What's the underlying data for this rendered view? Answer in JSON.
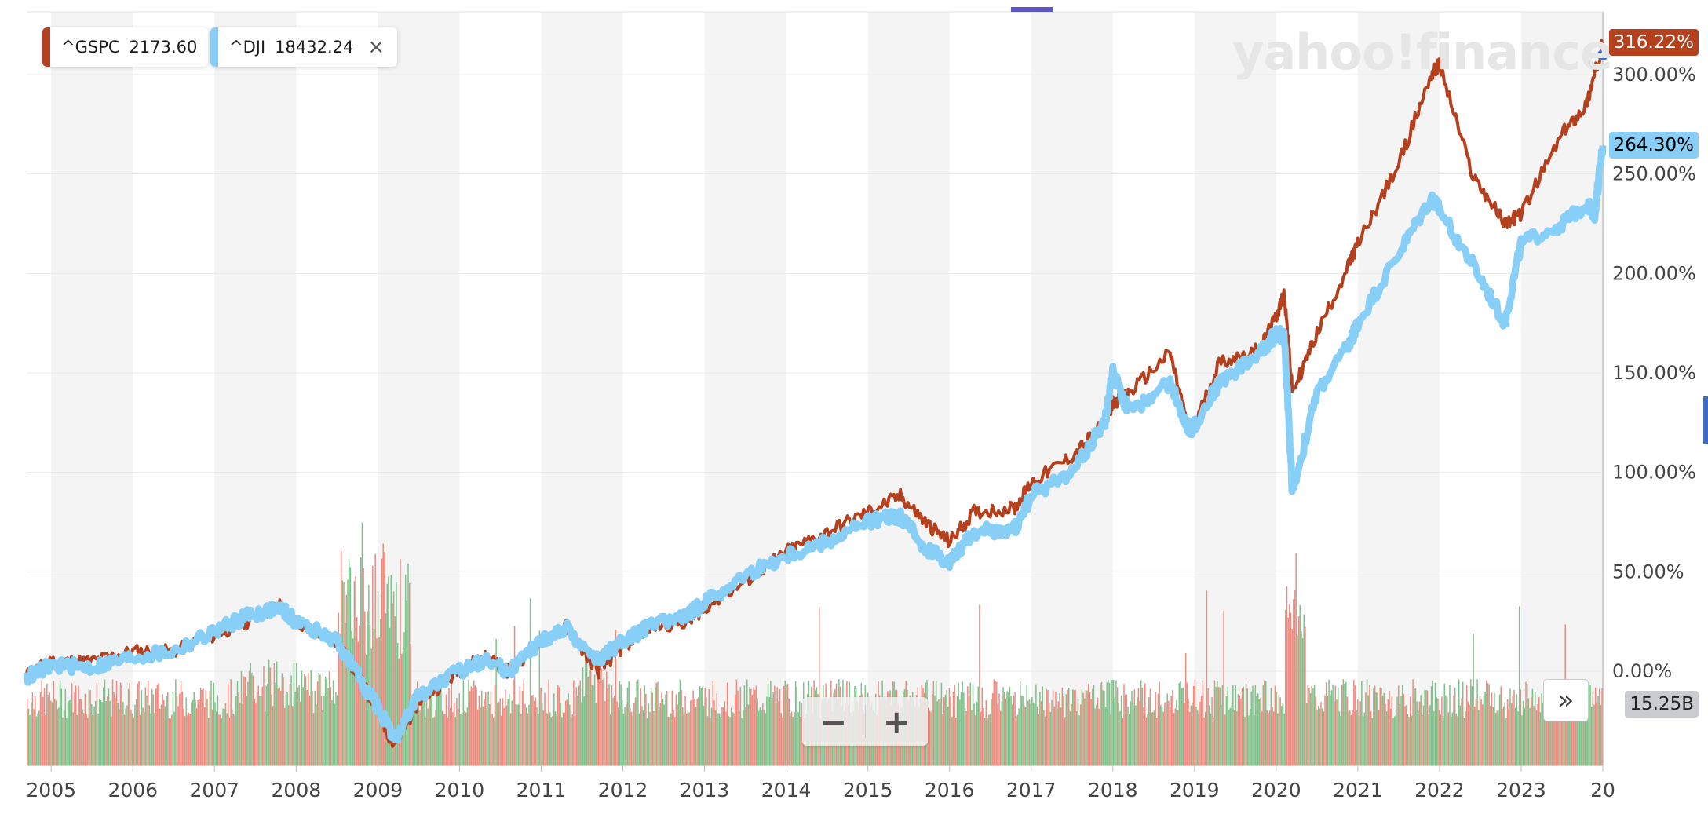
{
  "chart_data": {
    "type": "line",
    "x_start_year": 2004.7,
    "x_end_year": 2024.0,
    "year_ticks": [
      "2005",
      "2006",
      "2007",
      "2008",
      "2009",
      "2010",
      "2011",
      "2012",
      "2013",
      "2014",
      "2015",
      "2016",
      "2017",
      "2018",
      "2019",
      "2020",
      "2021",
      "2022",
      "2023",
      "20"
    ],
    "y_ticks": [
      "300.00%",
      "250.00%",
      "200.00%",
      "150.00%",
      "100.00%",
      "50.00%",
      "0.00%"
    ],
    "ylim": [
      -45,
      330
    ],
    "series": [
      {
        "name": "^GSPC",
        "color": "#b5401e",
        "points": [
          [
            2004.7,
            -2
          ],
          [
            2005.0,
            5
          ],
          [
            2005.5,
            5
          ],
          [
            2006.0,
            10
          ],
          [
            2006.5,
            10
          ],
          [
            2007.0,
            18
          ],
          [
            2007.4,
            25
          ],
          [
            2007.8,
            33
          ],
          [
            2008.0,
            25
          ],
          [
            2008.5,
            15
          ],
          [
            2008.8,
            -5
          ],
          [
            2009.0,
            -20
          ],
          [
            2009.2,
            -38
          ],
          [
            2009.5,
            -15
          ],
          [
            2010.0,
            0
          ],
          [
            2010.3,
            8
          ],
          [
            2010.6,
            0
          ],
          [
            2011.0,
            15
          ],
          [
            2011.3,
            22
          ],
          [
            2011.7,
            0
          ],
          [
            2012.0,
            12
          ],
          [
            2012.3,
            22
          ],
          [
            2012.8,
            25
          ],
          [
            2013.0,
            32
          ],
          [
            2013.5,
            45
          ],
          [
            2014.0,
            60
          ],
          [
            2014.5,
            70
          ],
          [
            2015.0,
            80
          ],
          [
            2015.4,
            88
          ],
          [
            2015.7,
            75
          ],
          [
            2016.0,
            65
          ],
          [
            2016.3,
            80
          ],
          [
            2016.8,
            82
          ],
          [
            2017.0,
            95
          ],
          [
            2017.5,
            108
          ],
          [
            2017.9,
            125
          ],
          [
            2018.0,
            135
          ],
          [
            2018.2,
            140
          ],
          [
            2018.7,
            160
          ],
          [
            2018.95,
            118
          ],
          [
            2019.3,
            155
          ],
          [
            2019.8,
            162
          ],
          [
            2020.0,
            178
          ],
          [
            2020.1,
            190
          ],
          [
            2020.2,
            140
          ],
          [
            2020.5,
            170
          ],
          [
            2020.9,
            205
          ],
          [
            2021.0,
            215
          ],
          [
            2021.5,
            255
          ],
          [
            2021.9,
            300
          ],
          [
            2022.0,
            305
          ],
          [
            2022.4,
            250
          ],
          [
            2022.8,
            225
          ],
          [
            2023.0,
            230
          ],
          [
            2023.5,
            270
          ],
          [
            2023.8,
            285
          ],
          [
            2023.9,
            300
          ],
          [
            2024.0,
            316.22
          ]
        ]
      },
      {
        "name": "^DJI",
        "color": "#88cff7",
        "points": [
          [
            2004.7,
            -3
          ],
          [
            2005.0,
            3
          ],
          [
            2005.5,
            2
          ],
          [
            2006.0,
            7
          ],
          [
            2006.5,
            10
          ],
          [
            2007.0,
            20
          ],
          [
            2007.4,
            28
          ],
          [
            2007.8,
            32
          ],
          [
            2008.0,
            25
          ],
          [
            2008.5,
            15
          ],
          [
            2008.8,
            -5
          ],
          [
            2009.0,
            -18
          ],
          [
            2009.2,
            -35
          ],
          [
            2009.5,
            -12
          ],
          [
            2010.0,
            0
          ],
          [
            2010.3,
            6
          ],
          [
            2010.6,
            0
          ],
          [
            2011.0,
            15
          ],
          [
            2011.3,
            22
          ],
          [
            2011.7,
            5
          ],
          [
            2012.0,
            15
          ],
          [
            2012.3,
            22
          ],
          [
            2012.8,
            28
          ],
          [
            2013.0,
            35
          ],
          [
            2013.5,
            48
          ],
          [
            2014.0,
            58
          ],
          [
            2014.5,
            65
          ],
          [
            2015.0,
            75
          ],
          [
            2015.4,
            78
          ],
          [
            2015.7,
            62
          ],
          [
            2016.0,
            55
          ],
          [
            2016.3,
            70
          ],
          [
            2016.8,
            72
          ],
          [
            2017.0,
            88
          ],
          [
            2017.5,
            100
          ],
          [
            2017.9,
            125
          ],
          [
            2018.0,
            150
          ],
          [
            2018.2,
            130
          ],
          [
            2018.7,
            145
          ],
          [
            2018.95,
            120
          ],
          [
            2019.3,
            145
          ],
          [
            2019.8,
            160
          ],
          [
            2020.0,
            170
          ],
          [
            2020.1,
            168
          ],
          [
            2020.2,
            90
          ],
          [
            2020.5,
            140
          ],
          [
            2020.9,
            165
          ],
          [
            2021.0,
            175
          ],
          [
            2021.5,
            210
          ],
          [
            2021.9,
            238
          ],
          [
            2022.0,
            232
          ],
          [
            2022.4,
            205
          ],
          [
            2022.8,
            175
          ],
          [
            2023.0,
            215
          ],
          [
            2023.5,
            225
          ],
          [
            2023.8,
            235
          ],
          [
            2023.9,
            230
          ],
          [
            2024.0,
            264.3
          ]
        ]
      }
    ]
  },
  "legend": {
    "gspc": {
      "symbol": "^GSPC",
      "value": "2173.60",
      "color": "#b5401e"
    },
    "dji": {
      "symbol": "^DJI",
      "value": "18432.24",
      "color": "#88cff7",
      "close_glyph": "×"
    }
  },
  "badges": {
    "gspc_pct": "316.22%",
    "dji_pct": "264.30%",
    "volume": "15.25B"
  },
  "watermark": "yahoo!finance",
  "zoom": {
    "minus": "−",
    "plus": "+"
  },
  "scroll_glyph": "»",
  "colors": {
    "band": "#f4f4f4",
    "volume_up": "#7fc18a",
    "volume_down": "#ef8a80",
    "gspc_badge": "#b5401e",
    "dji_badge": "#88cff7",
    "volume_badge": "#c9cbd1"
  }
}
